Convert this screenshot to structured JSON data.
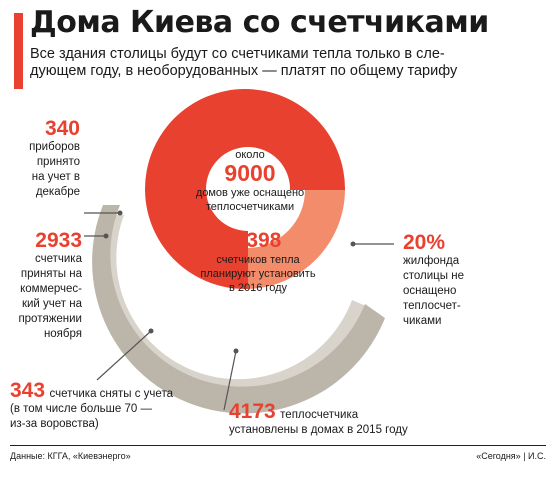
{
  "header": {
    "title": "Дома Киева со счетчиками",
    "subtitle_line1": "Все здания столицы будут со счетчиками тепла только в сле-",
    "subtitle_line2": "дующем году, в необорудованных — платят по общему тарифу"
  },
  "colors": {
    "accent": "#e8412f",
    "light_orange": "#f28c6b",
    "gray": "#bcb6aa",
    "gray_light": "#d9d4cb",
    "text": "#1a1a1a"
  },
  "chart_data": {
    "type": "pie",
    "slices": [
      {
        "label": "домов уже оснащено теплосчетчиками",
        "value": 9000
      },
      {
        "label": "жилфонда столицы не оснащено теплосчетчиками",
        "value": 20,
        "unit": "%"
      }
    ]
  },
  "annotations": {
    "center_about": "около",
    "center_value": "9000",
    "center_line1": "домов уже оснащено",
    "center_line2": "теплосчетчиками",
    "plan_value": "2398",
    "plan_line1": "счетчиков тепла",
    "plan_line2": "планируют установить",
    "plan_line3": "в 2016 году",
    "accepted_value": "340",
    "accepted_lines": [
      "приборов",
      "принято",
      "на учет в",
      "декабре"
    ],
    "commercial_value": "2933",
    "commercial_lines": [
      "счетчика",
      "приняты на",
      "коммерчес-",
      "кий учет на",
      "протяжении",
      "ноября"
    ],
    "removed_value": "343",
    "removed_line1": "счетчика сняты с учета",
    "removed_line2": "(в том числе больше 70 —",
    "removed_line3": "из-за воровства)",
    "installed_value": "4173",
    "installed_line1": "теплосчетчика",
    "installed_line2": "установлены в домах в 2015 году",
    "nofit_value": "20%",
    "nofit_lines": [
      "жилфонда",
      "столицы не",
      "оснащено",
      "теплосчет-",
      "чиками"
    ]
  },
  "footer": {
    "source": "Данные: КГГА, «Киевэнерго»",
    "credit": "«Сегодня» | И.С."
  }
}
